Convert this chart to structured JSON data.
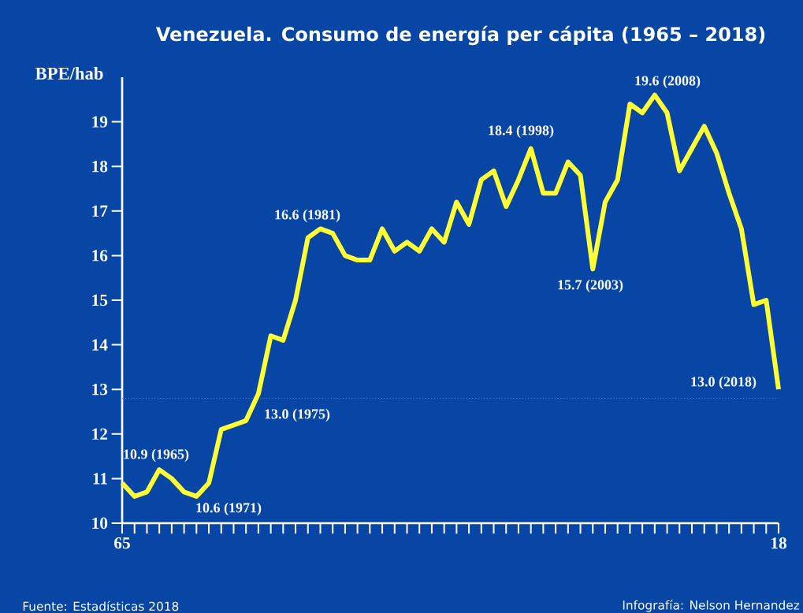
{
  "chart_data": {
    "type": "line",
    "title": "Venezuela.  Consumo de energía per cápita (1965 – 2018)",
    "ylabel": "BPE/hab",
    "x": [
      1965,
      1966,
      1967,
      1968,
      1969,
      1970,
      1971,
      1972,
      1973,
      1974,
      1975,
      1976,
      1977,
      1978,
      1979,
      1980,
      1981,
      1982,
      1983,
      1984,
      1985,
      1986,
      1987,
      1988,
      1989,
      1990,
      1991,
      1992,
      1993,
      1994,
      1995,
      1996,
      1997,
      1998,
      1999,
      2000,
      2001,
      2002,
      2003,
      2004,
      2005,
      2006,
      2007,
      2008,
      2009,
      2010,
      2011,
      2012,
      2013,
      2014,
      2015,
      2016,
      2017,
      2018
    ],
    "series": [
      {
        "color": "#ffff33",
        "values": [
          10.9,
          10.6,
          10.7,
          11.2,
          11.0,
          10.7,
          10.6,
          10.9,
          12.1,
          12.2,
          12.3,
          12.9,
          14.2,
          14.1,
          15.0,
          16.4,
          16.6,
          16.5,
          16.0,
          15.9,
          15.9,
          16.6,
          16.1,
          16.3,
          16.1,
          16.6,
          16.3,
          17.2,
          16.7,
          17.7,
          17.9,
          17.1,
          17.7,
          18.4,
          17.4,
          17.4,
          18.1,
          17.8,
          15.7,
          17.2,
          17.7,
          19.4,
          19.2,
          19.6,
          19.2,
          17.9,
          18.4,
          18.9,
          18.3,
          17.4,
          16.6,
          14.9,
          15.0,
          13.0
        ]
      }
    ],
    "xlim": [
      1965,
      2018
    ],
    "xticks": [
      {
        "value": 1965,
        "label": "65"
      },
      {
        "value": 1966,
        "label": null
      },
      {
        "value": 1967,
        "label": null
      },
      {
        "value": 1968,
        "label": null
      },
      {
        "value": 1969,
        "label": null
      },
      {
        "value": 1970,
        "label": null
      },
      {
        "value": 1971,
        "label": null
      },
      {
        "value": 1972,
        "label": null
      },
      {
        "value": 1973,
        "label": null
      },
      {
        "value": 1974,
        "label": null
      },
      {
        "value": 1975,
        "label": null
      },
      {
        "value": 1976,
        "label": null
      },
      {
        "value": 1977,
        "label": null
      },
      {
        "value": 1978,
        "label": null
      },
      {
        "value": 1979,
        "label": null
      },
      {
        "value": 1980,
        "label": null
      },
      {
        "value": 1981,
        "label": null
      },
      {
        "value": 1982,
        "label": null
      },
      {
        "value": 1983,
        "label": null
      },
      {
        "value": 1984,
        "label": null
      },
      {
        "value": 1985,
        "label": null
      },
      {
        "value": 1986,
        "label": null
      },
      {
        "value": 1987,
        "label": null
      },
      {
        "value": 1988,
        "label": null
      },
      {
        "value": 1989,
        "label": null
      },
      {
        "value": 1990,
        "label": null
      },
      {
        "value": 1991,
        "label": null
      },
      {
        "value": 1992,
        "label": null
      },
      {
        "value": 1993,
        "label": null
      },
      {
        "value": 1994,
        "label": null
      },
      {
        "value": 1995,
        "label": null
      },
      {
        "value": 1996,
        "label": null
      },
      {
        "value": 1997,
        "label": null
      },
      {
        "value": 1998,
        "label": null
      },
      {
        "value": 1999,
        "label": null
      },
      {
        "value": 2000,
        "label": null
      },
      {
        "value": 2001,
        "label": null
      },
      {
        "value": 2002,
        "label": null
      },
      {
        "value": 2003,
        "label": null
      },
      {
        "value": 2004,
        "label": null
      },
      {
        "value": 2005,
        "label": null
      },
      {
        "value": 2006,
        "label": null
      },
      {
        "value": 2007,
        "label": null
      },
      {
        "value": 2008,
        "label": null
      },
      {
        "value": 2009,
        "label": null
      },
      {
        "value": 2010,
        "label": null
      },
      {
        "value": 2011,
        "label": null
      },
      {
        "value": 2012,
        "label": null
      },
      {
        "value": 2013,
        "label": null
      },
      {
        "value": 2014,
        "label": null
      },
      {
        "value": 2015,
        "label": null
      },
      {
        "value": 2016,
        "label": null
      },
      {
        "value": 2017,
        "label": null
      },
      {
        "value": 2018,
        "label": "18"
      }
    ],
    "ylim": [
      10,
      20
    ],
    "yticks": [
      10,
      11,
      12,
      13,
      14,
      15,
      16,
      17,
      18,
      19
    ],
    "grid": false,
    "marker": "none",
    "line_style": "solid",
    "ref_lines": [
      {
        "axis": "y",
        "value": 12.8,
        "color": "#3a8fd8",
        "line_style": "dotted"
      }
    ],
    "annotations": [
      "10.9 (1965)",
      "10.6 (1971)",
      "13.0 (1975)",
      "16.6 (1981)",
      "18.4 (1998)",
      "15.7 (2003)",
      "19.6 (2008)",
      "13.0 (2018)",
      "Fuente: Estadísticas 2018",
      "Infografía: Nelson Hernandez"
    ]
  }
}
